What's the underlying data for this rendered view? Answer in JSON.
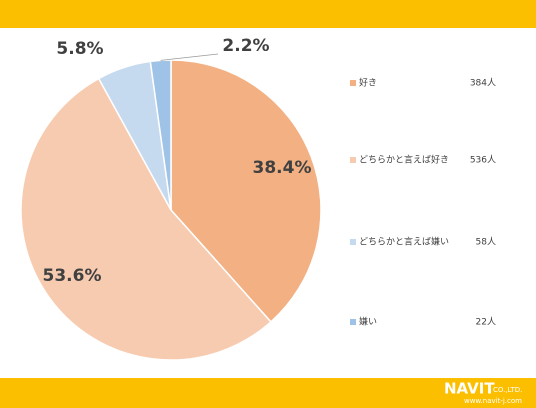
{
  "chart_data": {
    "type": "pie",
    "categories": [
      "好き",
      "どちらかと言えば好き",
      "どちらかと言えば嫌い",
      "嫌い"
    ],
    "values": [
      38.4,
      53.6,
      5.8,
      2.2
    ],
    "value_labels": [
      "38.4%",
      "53.6%",
      "5.8%",
      "2.2%"
    ],
    "count_labels": [
      "384人",
      "536人",
      "58人",
      "22人"
    ],
    "colors": [
      "#f2b083",
      "#f7cbb0",
      "#c5d9ef",
      "#9fc3e6"
    ],
    "legend": "right"
  },
  "footer": {
    "logo": "NAVIT",
    "company": "CO.,LTD.",
    "url": "www.navit-j.com"
  }
}
